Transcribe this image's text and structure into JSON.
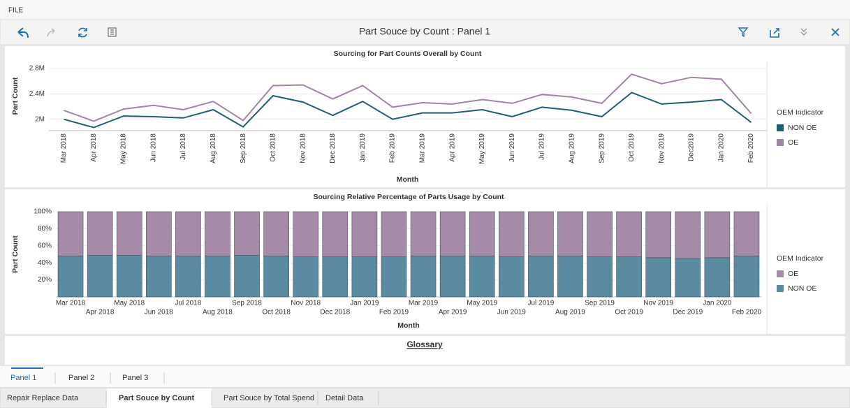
{
  "ui": {
    "menu": "FILE",
    "toolbar_title": "Part Souce by Count : Panel 1",
    "glossary": "Glossary",
    "panel_tabs": [
      "Panel 1",
      "Panel 2",
      "Panel 3"
    ],
    "sheet_tabs": [
      "Repair Replace Data",
      "Part Souce by Count",
      "Part Souce by Total Spend",
      "Detail Data"
    ]
  },
  "chart_data": [
    {
      "type": "line",
      "title": "Sourcing for Part Counts Overall by Count",
      "x_label": "Month",
      "y_label": "Part Count",
      "legend_title": "OEM Indicator",
      "categories": [
        "Mar 2018",
        "Apr 2018",
        "May 2018",
        "Jun 2018",
        "Jul 2018",
        "Aug 2018",
        "Sep 2018",
        "Oct 2018",
        "Nov 2018",
        "Dec 2018",
        "Jan 2019",
        "Feb 2019",
        "Mar 2019",
        "Apr 2019",
        "May 2019",
        "Jun 2019",
        "Jul 2019",
        "Aug 2019",
        "Sep 2019",
        "Oct 2019",
        "Nov 2019",
        "Dec2019",
        "Jan 2020",
        "Feb 2020"
      ],
      "series": [
        {
          "name": "NON OE",
          "color": "#1f5f73",
          "values": [
            2000000,
            1870000,
            2050000,
            2040000,
            2020000,
            2150000,
            1880000,
            2370000,
            2270000,
            2060000,
            2280000,
            2000000,
            2100000,
            2100000,
            2150000,
            2040000,
            2190000,
            2140000,
            2040000,
            2420000,
            2240000,
            2270000,
            2310000,
            1950000
          ]
        },
        {
          "name": "OE",
          "color": "#a283a8",
          "values": [
            2140000,
            1970000,
            2160000,
            2220000,
            2150000,
            2280000,
            1980000,
            2530000,
            2540000,
            2320000,
            2530000,
            2190000,
            2260000,
            2240000,
            2310000,
            2250000,
            2390000,
            2350000,
            2250000,
            2710000,
            2560000,
            2660000,
            2630000,
            2090000
          ]
        }
      ],
      "ylim": [
        1820000,
        2910000
      ],
      "yticks": [
        {
          "value": 2000000,
          "label": "2M"
        },
        {
          "value": 2400000,
          "label": "2.4M"
        },
        {
          "value": 2800000,
          "label": "2.8M"
        }
      ],
      "grid": true
    },
    {
      "type": "stacked_bar",
      "title": "Sourcing Relative Percentage of Parts Usage by Count",
      "x_label": "Month",
      "y_label": "Part Count",
      "legend_title": "OEM Indicator",
      "categories": [
        "Mar 2018",
        "Apr 2018",
        "May 2018",
        "Jun 2018",
        "Jul 2018",
        "Aug 2018",
        "Sep 2018",
        "Oct 2018",
        "Nov 2018",
        "Dec 2018",
        "Jan 2019",
        "Feb 2019",
        "Mar 2019",
        "Apr 2019",
        "May 2019",
        "Jun 2019",
        "Jul 2019",
        "Aug 2019",
        "Sep 2019",
        "Oct 2019",
        "Nov 2019",
        "Dec 2019",
        "Jan 2020",
        "Feb 2020"
      ],
      "series": [
        {
          "name": "OE",
          "color": "#a68ba9",
          "values": [
            52,
            51,
            51,
            52,
            52,
            52,
            51,
            52,
            53,
            53,
            53,
            53,
            52,
            52,
            52,
            53,
            52,
            52,
            53,
            53,
            54,
            55,
            54,
            52
          ]
        },
        {
          "name": "NON OE",
          "color": "#5b8ba0",
          "values": [
            48,
            49,
            49,
            48,
            48,
            48,
            49,
            48,
            47,
            47,
            47,
            47,
            48,
            48,
            48,
            47,
            48,
            48,
            47,
            47,
            46,
            45,
            46,
            48
          ]
        }
      ],
      "ylim": [
        0,
        100
      ],
      "yticks": [
        {
          "value": 20,
          "label": "20%"
        },
        {
          "value": 40,
          "label": "40%"
        },
        {
          "value": 60,
          "label": "60%"
        },
        {
          "value": 80,
          "label": "80%"
        },
        {
          "value": 100,
          "label": "100%"
        }
      ],
      "grid": true
    }
  ]
}
